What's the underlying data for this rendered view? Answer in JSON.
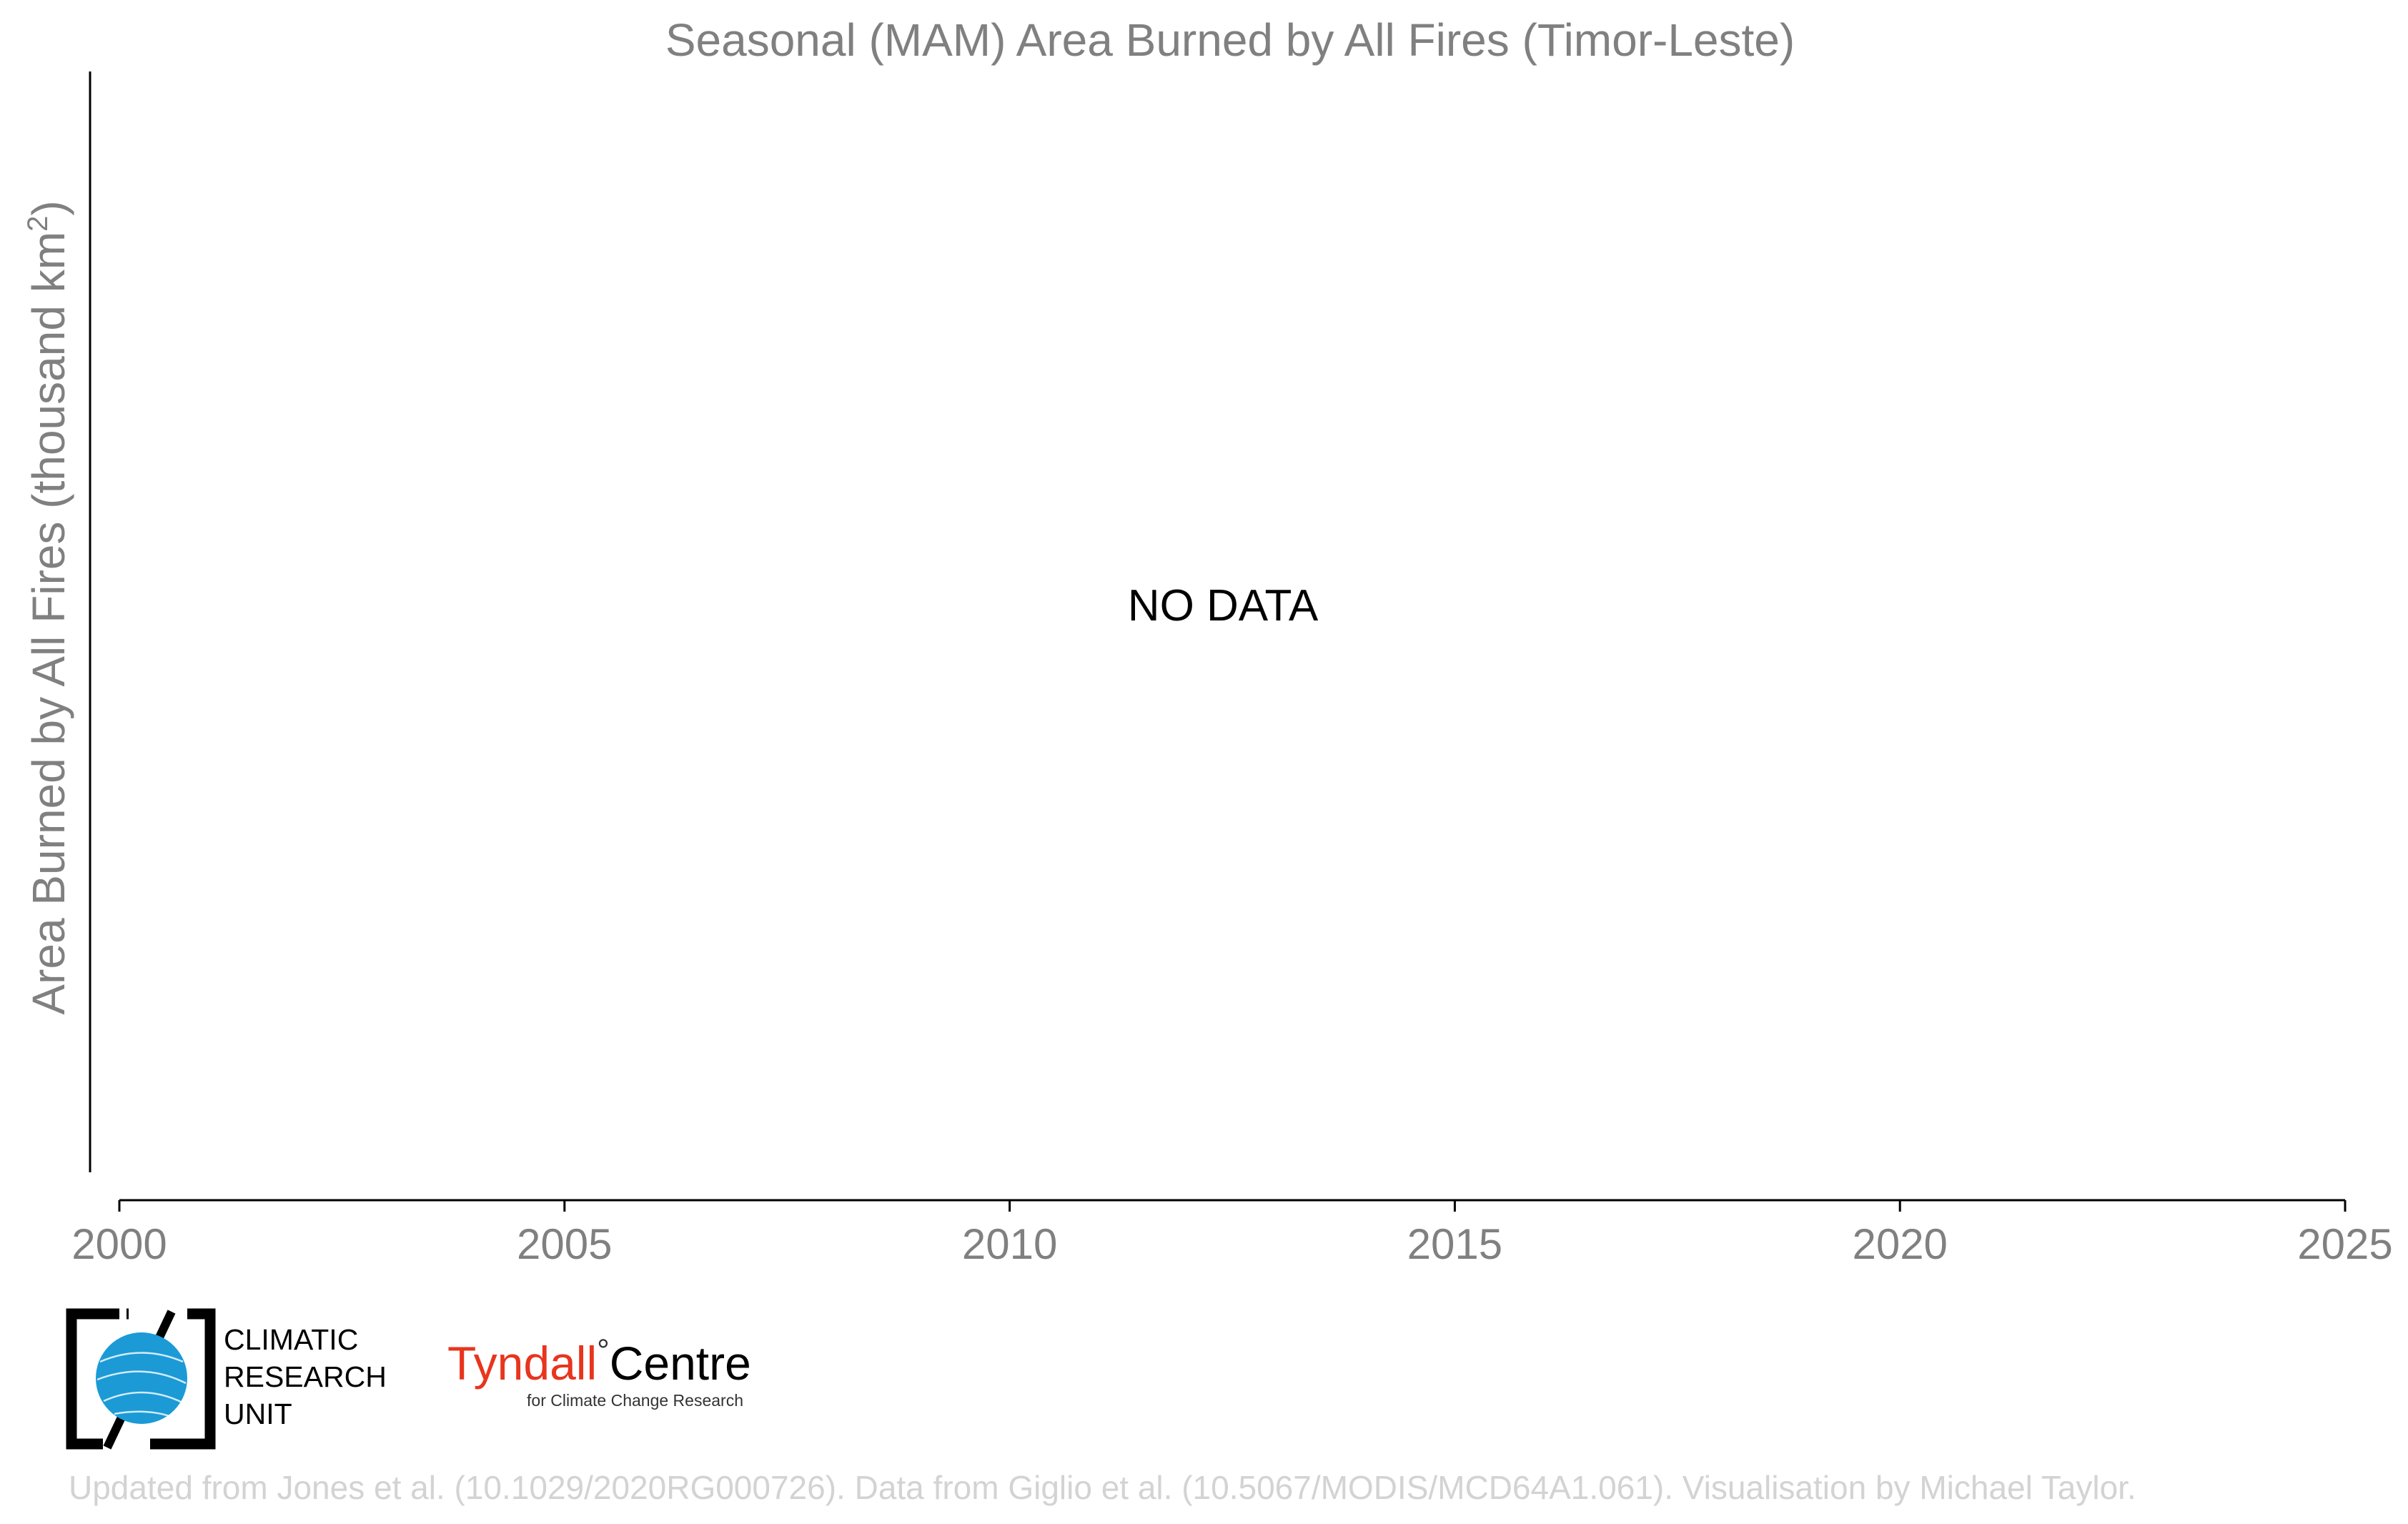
{
  "chart_data": {
    "type": "line",
    "title": "Seasonal (MAM) Area Burned by All Fires (Timor-Leste)",
    "xlabel": "",
    "ylabel": "Area Burned by All Fires (thousand km²)",
    "ylabel_main": "Area Burned by All Fires (thousand km",
    "ylabel_sup": "2",
    "ylabel_close": ")",
    "xlim": [
      2000,
      2025
    ],
    "x_ticks": [
      2000,
      2005,
      2010,
      2015,
      2020,
      2025
    ],
    "x_tick_labels": [
      "2000",
      "2005",
      "2010",
      "2015",
      "2020",
      "2025"
    ],
    "series": [],
    "annotation": "NO DATA",
    "grid": false
  },
  "logos": {
    "cru": {
      "lines": [
        "CLIMATIC",
        "RESEARCH",
        "UNIT"
      ],
      "globe_color": "#1b9ad6"
    },
    "tyndall": {
      "name_part1": "Tyndall",
      "degree": "°",
      "name_part2": "Centre",
      "subtitle": "for Climate Change Research",
      "accent_color": "#e8351e"
    }
  },
  "credit": "Updated from Jones et al. (10.1029/2020RG000726). Data from Giglio et al. (10.5067/MODIS/MCD64A1.061). Visualisation by Michael Taylor."
}
